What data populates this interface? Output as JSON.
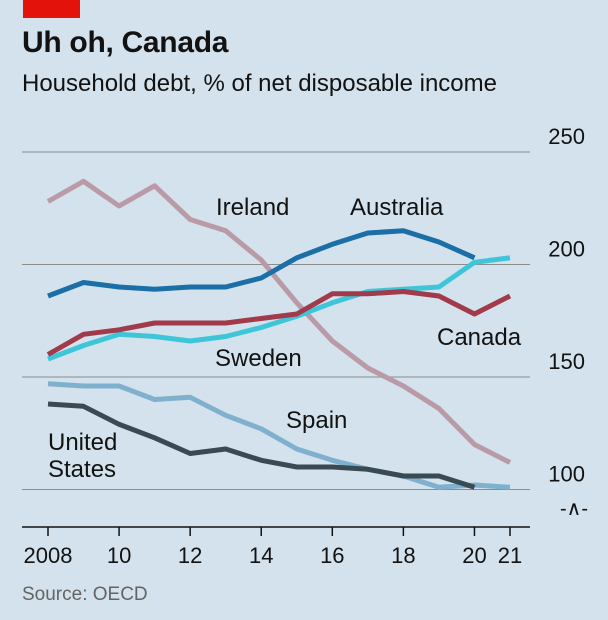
{
  "chart_data": {
    "type": "line",
    "title": "Uh oh, Canada",
    "subtitle": "Household debt, % of net disposable income",
    "source": "Source: OECD",
    "x": [
      2008,
      2009,
      2010,
      2011,
      2012,
      2013,
      2014,
      2015,
      2016,
      2017,
      2018,
      2019,
      2020,
      2021
    ],
    "x_tick_values": [
      2008,
      2010,
      2012,
      2014,
      2016,
      2018,
      2020,
      2021
    ],
    "x_tick_labels": [
      "2008",
      "10",
      "12",
      "14",
      "16",
      "18",
      "20",
      "21"
    ],
    "y_ticks": [
      100,
      150,
      200,
      250
    ],
    "y_tick_labels": [
      "100",
      "150",
      "200",
      "250"
    ],
    "ylim": [
      84,
      250
    ],
    "axis_break": "-∧-",
    "series": [
      {
        "name": "Ireland",
        "label_lines": [
          "Ireland"
        ],
        "color": "#b99aa6",
        "values": [
          228,
          237,
          226,
          235,
          220,
          215,
          202,
          183,
          166,
          154,
          146,
          136,
          120,
          112
        ]
      },
      {
        "name": "Australia",
        "label_lines": [
          "Australia"
        ],
        "color": "#1b6ea6",
        "values": [
          186,
          192,
          190,
          189,
          190,
          190,
          194,
          203,
          209,
          214,
          215,
          210,
          203,
          null
        ]
      },
      {
        "name": "Sweden",
        "label_lines": [
          "Sweden"
        ],
        "color": "#3ec6d8",
        "values": [
          158,
          164,
          169,
          168,
          166,
          168,
          172,
          177,
          183,
          188,
          189,
          190,
          201,
          203
        ]
      },
      {
        "name": "Canada",
        "label_lines": [
          "Canada"
        ],
        "color": "#a13a4a",
        "values": [
          160,
          169,
          171,
          174,
          174,
          174,
          176,
          178,
          187,
          187,
          188,
          186,
          178,
          186
        ]
      },
      {
        "name": "Spain",
        "label_lines": [
          "Spain"
        ],
        "color": "#7fb0cd",
        "values": [
          147,
          146,
          146,
          140,
          141,
          133,
          127,
          118,
          113,
          109,
          106,
          101,
          102,
          101
        ]
      },
      {
        "name": "United States",
        "label_lines": [
          "United",
          "States"
        ],
        "color": "#3a4a52",
        "values": [
          138,
          137,
          129,
          123,
          116,
          118,
          113,
          110,
          110,
          109,
          106,
          106,
          101,
          null
        ]
      }
    ]
  }
}
